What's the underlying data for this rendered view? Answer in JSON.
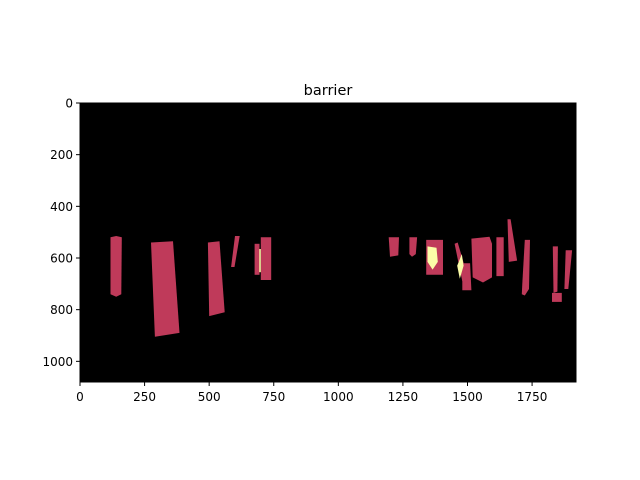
{
  "chart_data": {
    "type": "heatmap",
    "title": "barrier",
    "xlabel": "",
    "ylabel": "",
    "xlim": [
      0,
      1920
    ],
    "ylim": [
      1080,
      0
    ],
    "y_inverted": true,
    "grid": false,
    "legend": "none",
    "colors": {
      "background": "#000000",
      "region": "#bf3a5a",
      "highlight": "#fcfda8"
    },
    "x_ticks": [
      0,
      250,
      500,
      750,
      1000,
      1250,
      1500,
      1750
    ],
    "x_tick_labels": [
      "0",
      "250",
      "500",
      "750",
      "1000",
      "1250",
      "1500",
      "1750"
    ],
    "y_ticks": [
      0,
      200,
      400,
      600,
      800,
      1000
    ],
    "y_tick_labels": [
      "0",
      "200",
      "400",
      "600",
      "800",
      "1000"
    ],
    "regions": [
      {
        "level": "region",
        "points": [
          [
            118,
            520
          ],
          [
            140,
            515
          ],
          [
            162,
            520
          ],
          [
            160,
            740
          ],
          [
            140,
            750
          ],
          [
            118,
            740
          ]
        ]
      },
      {
        "level": "region",
        "points": [
          [
            275,
            540
          ],
          [
            360,
            535
          ],
          [
            385,
            890
          ],
          [
            290,
            905
          ]
        ]
      },
      {
        "level": "region",
        "points": [
          [
            495,
            540
          ],
          [
            540,
            535
          ],
          [
            560,
            810
          ],
          [
            500,
            825
          ]
        ]
      },
      {
        "level": "region",
        "points": [
          [
            600,
            515
          ],
          [
            618,
            515
          ],
          [
            598,
            635
          ],
          [
            585,
            635
          ]
        ]
      },
      {
        "level": "region",
        "points": [
          [
            676,
            545
          ],
          [
            695,
            545
          ],
          [
            695,
            665
          ],
          [
            676,
            665
          ]
        ]
      },
      {
        "level": "region",
        "points": [
          [
            700,
            520
          ],
          [
            740,
            520
          ],
          [
            740,
            685
          ],
          [
            700,
            685
          ]
        ]
      },
      {
        "level": "highlight",
        "points": [
          [
            694,
            565
          ],
          [
            700,
            565
          ],
          [
            700,
            655
          ],
          [
            694,
            655
          ]
        ]
      },
      {
        "level": "region",
        "points": [
          [
            1195,
            520
          ],
          [
            1235,
            520
          ],
          [
            1232,
            590
          ],
          [
            1200,
            595
          ]
        ]
      },
      {
        "level": "region",
        "points": [
          [
            1275,
            520
          ],
          [
            1305,
            520
          ],
          [
            1300,
            585
          ],
          [
            1285,
            595
          ],
          [
            1275,
            585
          ]
        ]
      },
      {
        "level": "region",
        "points": [
          [
            1340,
            530
          ],
          [
            1405,
            530
          ],
          [
            1405,
            665
          ],
          [
            1340,
            665
          ]
        ]
      },
      {
        "level": "highlight",
        "points": [
          [
            1345,
            555
          ],
          [
            1380,
            560
          ],
          [
            1385,
            615
          ],
          [
            1365,
            645
          ],
          [
            1345,
            615
          ]
        ]
      },
      {
        "level": "region",
        "points": [
          [
            1450,
            545
          ],
          [
            1462,
            540
          ],
          [
            1500,
            670
          ],
          [
            1480,
            690
          ]
        ]
      },
      {
        "level": "region",
        "points": [
          [
            1480,
            620
          ],
          [
            1510,
            620
          ],
          [
            1515,
            725
          ],
          [
            1480,
            725
          ]
        ]
      },
      {
        "level": "highlight",
        "points": [
          [
            1460,
            630
          ],
          [
            1478,
            585
          ],
          [
            1485,
            630
          ],
          [
            1470,
            680
          ]
        ]
      },
      {
        "level": "region",
        "points": [
          [
            1515,
            525
          ],
          [
            1585,
            518
          ],
          [
            1595,
            545
          ],
          [
            1595,
            675
          ],
          [
            1560,
            695
          ],
          [
            1520,
            675
          ]
        ]
      },
      {
        "level": "region",
        "points": [
          [
            1612,
            520
          ],
          [
            1640,
            520
          ],
          [
            1640,
            670
          ],
          [
            1612,
            670
          ]
        ]
      },
      {
        "level": "region",
        "points": [
          [
            1655,
            450
          ],
          [
            1667,
            450
          ],
          [
            1692,
            610
          ],
          [
            1660,
            615
          ]
        ]
      },
      {
        "level": "region",
        "points": [
          [
            1722,
            530
          ],
          [
            1742,
            530
          ],
          [
            1738,
            720
          ],
          [
            1722,
            745
          ],
          [
            1710,
            740
          ],
          [
            1712,
            700
          ]
        ]
      },
      {
        "level": "region",
        "points": [
          [
            1830,
            555
          ],
          [
            1850,
            555
          ],
          [
            1848,
            730
          ],
          [
            1833,
            735
          ]
        ]
      },
      {
        "level": "region",
        "points": [
          [
            1827,
            735
          ],
          [
            1865,
            735
          ],
          [
            1865,
            770
          ],
          [
            1827,
            770
          ]
        ]
      },
      {
        "level": "region",
        "points": [
          [
            1880,
            570
          ],
          [
            1905,
            570
          ],
          [
            1890,
            720
          ],
          [
            1875,
            720
          ]
        ]
      }
    ]
  }
}
